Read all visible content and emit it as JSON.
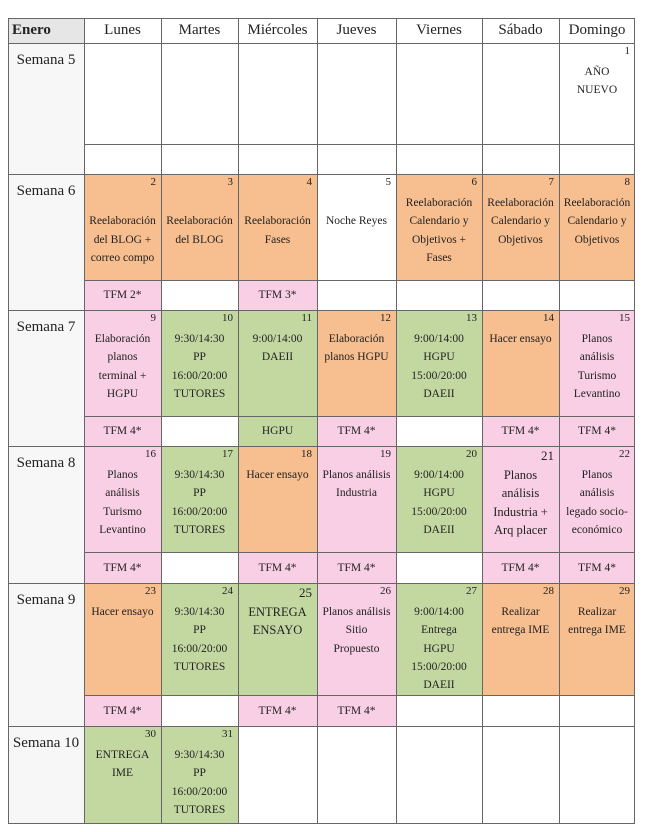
{
  "colors": {
    "orange": "#f7be8f",
    "green": "#c3d8a1",
    "pink": "#f8cfe4",
    "white": "#ffffff",
    "header": "#e6e6e6",
    "week": "#f7f7f7"
  },
  "headers": [
    "Enero",
    "Lunes",
    "Martes",
    "Miércoles",
    "Jueves",
    "Viernes",
    "Sábado",
    "Domingo"
  ],
  "weeks": [
    {
      "label": "Semana 5",
      "days": [
        {
          "num": "",
          "text": [],
          "color": "white"
        },
        {
          "num": "",
          "text": [],
          "color": "white"
        },
        {
          "num": "",
          "text": [],
          "color": "white"
        },
        {
          "num": "",
          "text": [],
          "color": "white"
        },
        {
          "num": "",
          "text": [],
          "color": "white"
        },
        {
          "num": "",
          "text": [],
          "color": "white"
        },
        {
          "num": "1",
          "text": [
            "AÑO",
            "NUEVO"
          ],
          "color": "white"
        }
      ],
      "tfm": [
        {
          "text": "",
          "color": "white"
        },
        {
          "text": "",
          "color": "white"
        },
        {
          "text": "",
          "color": "white"
        },
        {
          "text": "",
          "color": "white"
        },
        {
          "text": "",
          "color": "white"
        },
        {
          "text": "",
          "color": "white"
        },
        {
          "text": "",
          "color": "white"
        }
      ]
    },
    {
      "label": "Semana 6",
      "days": [
        {
          "num": "2",
          "text": [
            "",
            "Reelaboración",
            "del BLOG +",
            "correo compo"
          ],
          "color": "orange"
        },
        {
          "num": "3",
          "text": [
            "",
            "Reelaboración",
            "del BLOG"
          ],
          "color": "orange"
        },
        {
          "num": "4",
          "text": [
            "",
            "Reelaboración",
            "Fases"
          ],
          "color": "orange"
        },
        {
          "num": "5",
          "text": [
            "",
            "Noche Reyes"
          ],
          "color": "white"
        },
        {
          "num": "6",
          "text": [
            "Reelaboración",
            "Calendario y",
            "Objetivos +",
            "Fases"
          ],
          "color": "orange"
        },
        {
          "num": "7",
          "text": [
            "Reelaboración",
            "Calendario y",
            "Objetivos"
          ],
          "color": "orange"
        },
        {
          "num": "8",
          "text": [
            "Reelaboración",
            "Calendario y",
            "Objetivos"
          ],
          "color": "orange"
        }
      ],
      "tfm": [
        {
          "text": "TFM 2*",
          "color": "pink"
        },
        {
          "text": "",
          "color": "white"
        },
        {
          "text": "TFM 3*",
          "color": "pink"
        },
        {
          "text": "",
          "color": "white"
        },
        {
          "text": "",
          "color": "white"
        },
        {
          "text": "",
          "color": "white"
        },
        {
          "text": "",
          "color": "white"
        }
      ]
    },
    {
      "label": "Semana 7",
      "days": [
        {
          "num": "9",
          "text": [
            "Elaboración",
            "planos",
            "terminal +",
            "HGPU"
          ],
          "color": "pink"
        },
        {
          "num": "10",
          "text": [
            "9:30/14:30",
            "PP",
            "16:00/20:00",
            "TUTORES"
          ],
          "color": "green"
        },
        {
          "num": "11",
          "text": [
            "9:00/14:00",
            "DAEII"
          ],
          "color": "green"
        },
        {
          "num": "12",
          "text": [
            "Elaboración",
            "planos HGPU"
          ],
          "color": "orange"
        },
        {
          "num": "13",
          "text": [
            "9:00/14:00",
            "HGPU",
            "15:00/20:00",
            "DAEII"
          ],
          "color": "green"
        },
        {
          "num": "14",
          "text": [
            "Hacer ensayo"
          ],
          "color": "orange"
        },
        {
          "num": "15",
          "text": [
            "Planos",
            "análisis",
            "Turismo",
            "Levantino"
          ],
          "color": "pink"
        }
      ],
      "tfm": [
        {
          "text": "TFM 4*",
          "color": "pink"
        },
        {
          "text": "",
          "color": "white"
        },
        {
          "text": "HGPU",
          "color": "green"
        },
        {
          "text": "TFM 4*",
          "color": "pink"
        },
        {
          "text": "",
          "color": "white"
        },
        {
          "text": "TFM 4*",
          "color": "pink"
        },
        {
          "text": "TFM 4*",
          "color": "pink"
        }
      ]
    },
    {
      "label": "Semana 8",
      "days": [
        {
          "num": "16",
          "text": [
            "Planos",
            "análisis",
            "Turismo",
            "Levantino"
          ],
          "color": "pink"
        },
        {
          "num": "17",
          "text": [
            "9:30/14:30",
            "PP",
            "16:00/20:00",
            "TUTORES"
          ],
          "color": "green"
        },
        {
          "num": "18",
          "text": [
            "Hacer ensayo"
          ],
          "color": "orange"
        },
        {
          "num": "19",
          "text": [
            "Planos análisis",
            "Industria"
          ],
          "color": "pink"
        },
        {
          "num": "20",
          "text": [
            "9:00/14:00",
            "HGPU",
            "15:00/20:00",
            "DAEII"
          ],
          "color": "green"
        },
        {
          "num": "21",
          "text": [
            "Planos",
            "análisis",
            "Industria +",
            "Arq placer"
          ],
          "color": "pink",
          "big": true
        },
        {
          "num": "22",
          "text": [
            "Planos",
            "análisis",
            "legado socio-",
            "económico"
          ],
          "color": "pink"
        }
      ],
      "tfm": [
        {
          "text": "TFM 4*",
          "color": "pink"
        },
        {
          "text": "",
          "color": "white"
        },
        {
          "text": "TFM 4*",
          "color": "pink"
        },
        {
          "text": "TFM 4*",
          "color": "pink"
        },
        {
          "text": "",
          "color": "white"
        },
        {
          "text": "TFM 4*",
          "color": "pink"
        },
        {
          "text": "TFM 4*",
          "color": "pink"
        }
      ]
    },
    {
      "label": "Semana 9",
      "days": [
        {
          "num": "23",
          "text": [
            "Hacer ensayo"
          ],
          "color": "orange"
        },
        {
          "num": "24",
          "text": [
            "9:30/14:30",
            "PP",
            "16:00/20:00",
            "TUTORES"
          ],
          "color": "green"
        },
        {
          "num": "25",
          "text": [
            "ENTREGA",
            "ENSAYO"
          ],
          "color": "green",
          "big": true
        },
        {
          "num": "26",
          "text": [
            "Planos análisis",
            "Sitio",
            "Propuesto"
          ],
          "color": "pink"
        },
        {
          "num": "27",
          "text": [
            "9:00/14:00",
            "Entrega",
            "HGPU",
            "15:00/20:00",
            "DAEII"
          ],
          "color": "green"
        },
        {
          "num": "28",
          "text": [
            "Realizar",
            "entrega IME"
          ],
          "color": "orange"
        },
        {
          "num": "29",
          "text": [
            "Realizar",
            "entrega IME"
          ],
          "color": "orange"
        }
      ],
      "tfm": [
        {
          "text": "TFM 4*",
          "color": "pink"
        },
        {
          "text": "",
          "color": "white"
        },
        {
          "text": "TFM 4*",
          "color": "pink"
        },
        {
          "text": "TFM 4*",
          "color": "pink"
        },
        {
          "text": "",
          "color": "white"
        },
        {
          "text": "",
          "color": "white"
        },
        {
          "text": "",
          "color": "white"
        }
      ]
    },
    {
      "label": "Semana 10",
      "days": [
        {
          "num": "30",
          "text": [
            "ENTREGA",
            "IME"
          ],
          "color": "green"
        },
        {
          "num": "31",
          "text": [
            "9:30/14:30",
            "PP",
            "16:00/20:00",
            "TUTORES"
          ],
          "color": "green"
        },
        {
          "num": "",
          "text": [],
          "color": "white"
        },
        {
          "num": "",
          "text": [],
          "color": "white"
        },
        {
          "num": "",
          "text": [],
          "color": "white"
        },
        {
          "num": "",
          "text": [],
          "color": "white"
        },
        {
          "num": "",
          "text": [],
          "color": "white"
        }
      ]
    }
  ]
}
